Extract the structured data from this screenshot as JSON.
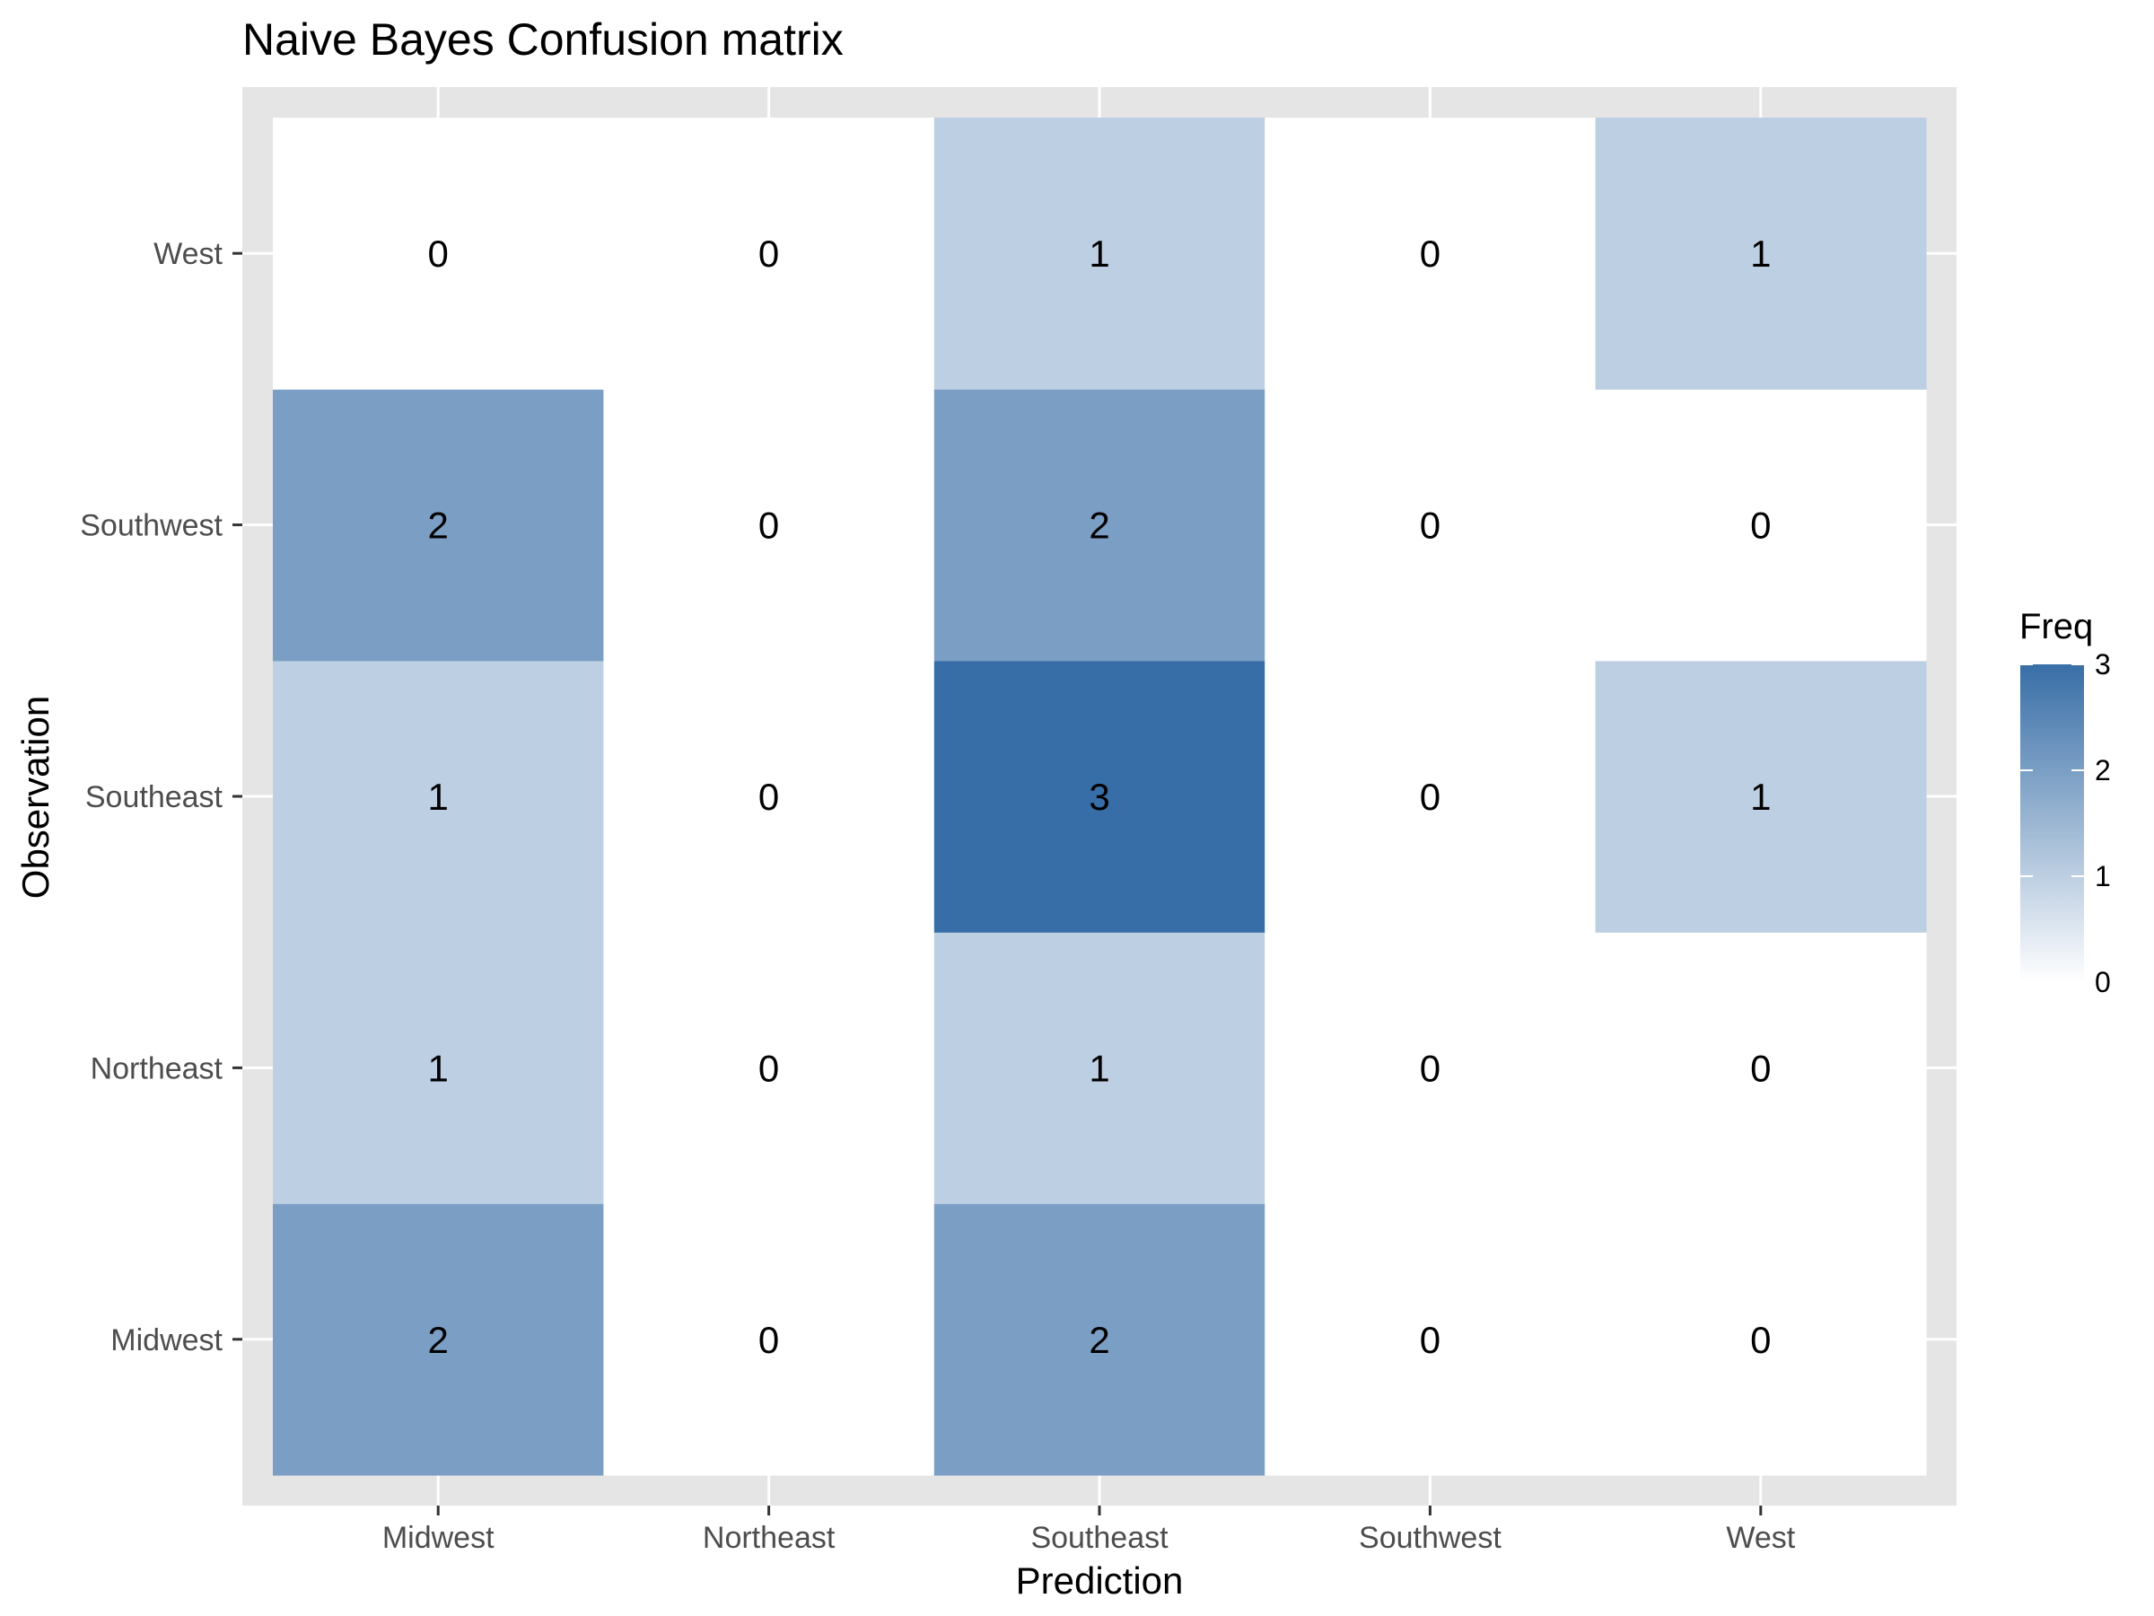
{
  "chart_data": {
    "type": "heatmap",
    "title": "Naive Bayes Confusion matrix",
    "xlabel": "Prediction",
    "ylabel": "Observation",
    "x_categories": [
      "Midwest",
      "Northeast",
      "Southeast",
      "Southwest",
      "West"
    ],
    "y_categories": [
      "Midwest",
      "Northeast",
      "Southeast",
      "Southwest",
      "West"
    ],
    "values": [
      [
        2,
        0,
        2,
        0,
        0
      ],
      [
        1,
        0,
        1,
        0,
        0
      ],
      [
        1,
        0,
        3,
        0,
        1
      ],
      [
        2,
        0,
        2,
        0,
        0
      ],
      [
        0,
        0,
        1,
        0,
        1
      ]
    ],
    "legend": {
      "title": "Freq",
      "ticks": [
        0,
        1,
        2,
        3
      ],
      "placement": "right"
    },
    "color_low": "#ffffff",
    "color_high": "#386ea7",
    "panel_background": "#e5e5e5",
    "grid": true
  }
}
